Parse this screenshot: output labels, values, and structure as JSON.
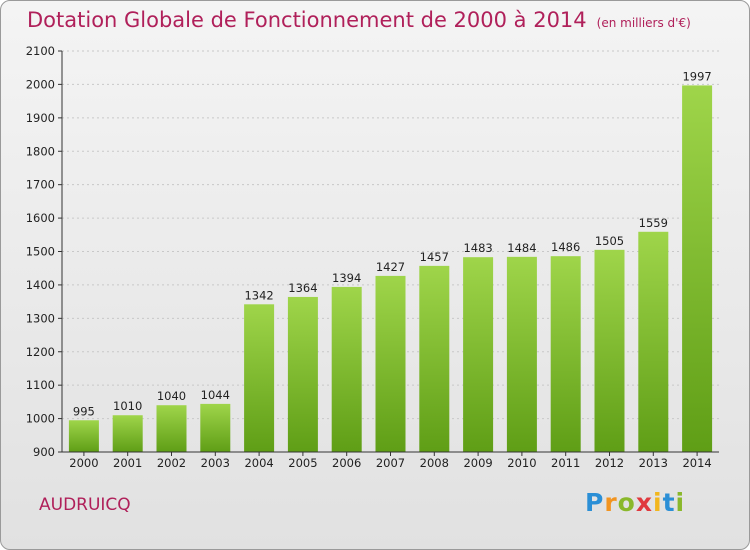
{
  "header": {
    "title": "Dotation Globale de Fonctionnement de 2000 à 2014",
    "subtitle": "(en milliers d'€)"
  },
  "footer": {
    "commune": "AUDRUICQ",
    "logo_text": "Proxiti"
  },
  "colors": {
    "title": "#b0205a",
    "bar_light": "#9fd54a",
    "bar_dark": "#5f9e16"
  },
  "chart_data": {
    "type": "bar",
    "categories": [
      "2000",
      "2001",
      "2002",
      "2003",
      "2004",
      "2005",
      "2006",
      "2007",
      "2008",
      "2009",
      "2010",
      "2011",
      "2012",
      "2013",
      "2014"
    ],
    "values": [
      995,
      1010,
      1040,
      1044,
      1342,
      1364,
      1394,
      1427,
      1457,
      1483,
      1484,
      1486,
      1505,
      1559,
      1997
    ],
    "ylim": [
      900,
      2100
    ],
    "yticks": [
      900,
      1000,
      1100,
      1200,
      1300,
      1400,
      1500,
      1600,
      1700,
      1800,
      1900,
      2000,
      2100
    ],
    "grid": true,
    "legend": "none"
  }
}
